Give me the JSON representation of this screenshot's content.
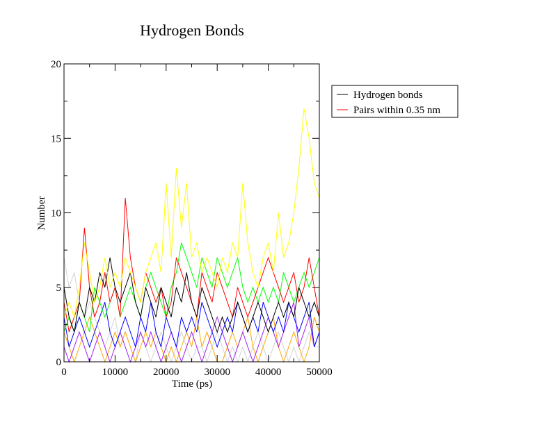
{
  "chart_data": {
    "type": "line",
    "title": "Hydrogen Bonds",
    "xlabel": "Time (ps)",
    "ylabel": "Number",
    "xlim": [
      0,
      50000
    ],
    "ylim": [
      0,
      20
    ],
    "x_ticks": [
      0,
      10000,
      20000,
      30000,
      40000,
      50000
    ],
    "y_ticks": [
      0,
      5,
      10,
      15,
      20
    ],
    "x_step": 1000,
    "legend_position": "right, outside plot",
    "grid": false,
    "legend": [
      {
        "label": "Hydrogen bonds",
        "color": "#000000"
      },
      {
        "label": "Pairs within 0.35 nm",
        "color": "#ff0000"
      }
    ],
    "series": [
      {
        "color": "#d3d3d3",
        "values": [
          7,
          5,
          6,
          4,
          3,
          4,
          3,
          2,
          1,
          2,
          3,
          1,
          2,
          1,
          0,
          2,
          1,
          0,
          1,
          2,
          1,
          0,
          1,
          2,
          1,
          0,
          1,
          1,
          0,
          1,
          2,
          1,
          0,
          1,
          0,
          1,
          0,
          1,
          2,
          1,
          0,
          1,
          2,
          1,
          0,
          1,
          0,
          1,
          2,
          1,
          1
        ]
      },
      {
        "color": "#ffa500",
        "values": [
          2,
          1,
          0,
          1,
          2,
          3,
          2,
          1,
          0,
          1,
          2,
          1,
          2,
          1,
          0,
          1,
          2,
          1,
          2,
          1,
          0,
          1,
          0,
          1,
          2,
          1,
          3,
          1,
          2,
          1,
          0,
          0,
          1,
          2,
          1,
          2,
          3,
          1,
          0,
          1,
          2,
          3,
          1,
          0,
          1,
          2,
          1,
          0,
          1,
          3,
          2
        ]
      },
      {
        "color": "#a020f0",
        "values": [
          1,
          0,
          1,
          2,
          1,
          0,
          1,
          2,
          1,
          0,
          1,
          2,
          1,
          0,
          1,
          2,
          1,
          2,
          1,
          0,
          1,
          2,
          1,
          0,
          1,
          2,
          1,
          0,
          1,
          2,
          3,
          2,
          1,
          0,
          1,
          2,
          1,
          0,
          1,
          2,
          3,
          2,
          1,
          2,
          3,
          4,
          1,
          2,
          3,
          1,
          2
        ]
      },
      {
        "color": "#0000ff",
        "values": [
          3,
          1,
          2,
          3,
          2,
          1,
          2,
          3,
          4,
          2,
          1,
          2,
          3,
          2,
          1,
          3,
          2,
          4,
          2,
          1,
          3,
          2,
          1,
          3,
          2,
          3,
          2,
          4,
          3,
          2,
          1,
          2,
          3,
          2,
          4,
          3,
          2,
          3,
          2,
          4,
          3,
          2,
          3,
          2,
          4,
          3,
          2,
          3,
          4,
          1,
          2
        ]
      },
      {
        "color": "#00ff00",
        "values": [
          2,
          3,
          2,
          4,
          3,
          2,
          5,
          4,
          3,
          4,
          5,
          3,
          4,
          5,
          4,
          3,
          5,
          6,
          5,
          4,
          3,
          5,
          6,
          8,
          7,
          6,
          5,
          7,
          6,
          5,
          7,
          6,
          5,
          6,
          7,
          5,
          4,
          5,
          4,
          5,
          4,
          5,
          4,
          6,
          5,
          4,
          5,
          6,
          5,
          6,
          7
        ]
      },
      {
        "color": "#ff0000",
        "values": [
          4,
          2,
          3,
          4,
          9,
          5,
          3,
          4,
          6,
          4,
          5,
          3,
          11,
          7,
          5,
          4,
          6,
          5,
          4,
          5,
          3,
          4,
          7,
          6,
          5,
          4,
          3,
          6,
          5,
          4,
          6,
          5,
          4,
          3,
          5,
          4,
          3,
          4,
          5,
          6,
          7,
          6,
          5,
          4,
          5,
          6,
          4,
          5,
          7,
          5,
          3
        ]
      },
      {
        "color": "#000000",
        "values": [
          5,
          3,
          2,
          4,
          3,
          5,
          4,
          6,
          5,
          7,
          5,
          4,
          5,
          6,
          4,
          3,
          5,
          4,
          3,
          5,
          4,
          3,
          5,
          4,
          6,
          4,
          3,
          5,
          4,
          3,
          2,
          3,
          2,
          3,
          4,
          3,
          2,
          3,
          4,
          3,
          2,
          3,
          4,
          3,
          4,
          3,
          5,
          4,
          3,
          4,
          3
        ]
      },
      {
        "color": "#ffff00",
        "values": [
          3,
          4,
          3,
          5,
          8,
          6,
          4,
          5,
          7,
          5,
          6,
          5,
          7,
          6,
          5,
          4,
          6,
          7,
          8,
          6,
          12,
          7,
          13,
          9,
          12,
          7,
          8,
          6,
          7,
          6,
          5,
          7,
          6,
          8,
          7,
          12,
          8,
          6,
          5,
          7,
          8,
          6,
          10,
          7,
          8,
          10,
          13,
          17,
          15,
          12,
          11
        ]
      }
    ]
  }
}
